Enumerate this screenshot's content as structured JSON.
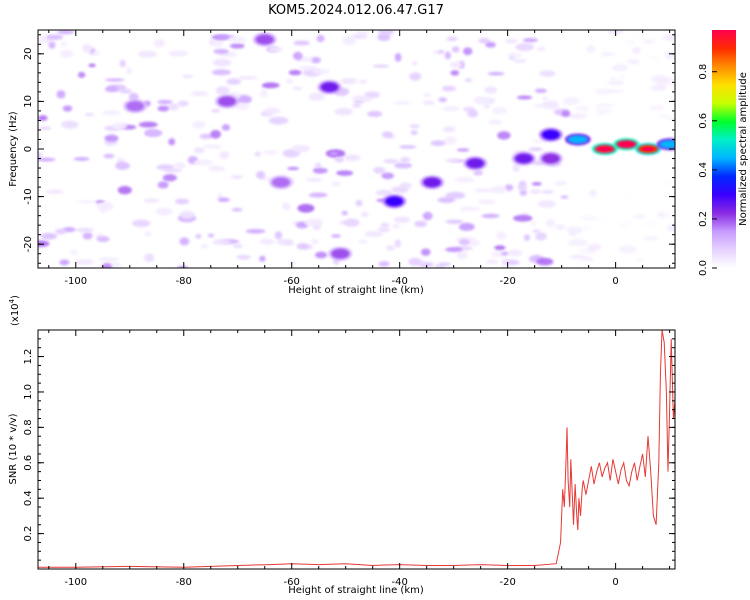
{
  "title": "KOM5.2024.012.06.47.G17",
  "colorbar": {
    "label": "Normalized spectral amplitude",
    "ticks": [
      "0.0",
      "0.2",
      "0.4",
      "0.6",
      "0.8"
    ],
    "tick_values": [
      0.0,
      0.2,
      0.4,
      0.6,
      0.8
    ],
    "range": [
      0,
      0.97
    ],
    "stops": [
      "#ffffff",
      "#e6d2ff",
      "#c79bff",
      "#8a2be2",
      "#3a00ff",
      "#0028ff",
      "#00b4ff",
      "#00f0c8",
      "#00ff2a",
      "#c8ff00",
      "#ffe000",
      "#ff8c00",
      "#ff2a00",
      "#ff0050"
    ]
  },
  "chart_data": [
    {
      "type": "heatmap",
      "xlabel": "Height of straight line (km)",
      "ylabel": "Frequency (Hz)",
      "xlim": [
        -107,
        11
      ],
      "ylim": [
        -25,
        25
      ],
      "xticks": [
        -100,
        -80,
        -60,
        -40,
        -20,
        0
      ],
      "yticks": [
        -20,
        -10,
        0,
        10,
        20
      ],
      "grid": false,
      "features": [
        {
          "x": -65,
          "y": 23,
          "value": 0.2
        },
        {
          "x": -72,
          "y": 10,
          "value": 0.2
        },
        {
          "x": -53,
          "y": 13,
          "value": 0.25
        },
        {
          "x": -51,
          "y": -22,
          "value": 0.2
        },
        {
          "x": -62,
          "y": -7,
          "value": 0.18
        },
        {
          "x": -89,
          "y": 9,
          "value": 0.18
        },
        {
          "x": -41,
          "y": -11,
          "value": 0.3
        },
        {
          "x": -34,
          "y": -7,
          "value": 0.25
        },
        {
          "x": -26,
          "y": -3,
          "value": 0.25
        },
        {
          "x": -17,
          "y": -2,
          "value": 0.25
        },
        {
          "x": -12,
          "y": -2,
          "value": 0.22
        },
        {
          "x": -12,
          "y": 3,
          "value": 0.3
        },
        {
          "x": -7,
          "y": 2,
          "value": 0.45
        },
        {
          "x": -2,
          "y": 0,
          "value": 0.95
        },
        {
          "x": 2,
          "y": 1,
          "value": 0.97
        },
        {
          "x": 6,
          "y": 0,
          "value": 0.9
        },
        {
          "x": 10,
          "y": 1,
          "value": 0.45
        }
      ]
    },
    {
      "type": "line",
      "xlabel": "Height of straight line (km)",
      "ylabel": "SNR (10 * v/v)",
      "y_multiplier": "(x10",
      "y_multiplier_exp": "4",
      "y_multiplier_close": ")",
      "xlim": [
        -107,
        11
      ],
      "ylim": [
        0,
        1.35
      ],
      "xticks": [
        -100,
        -80,
        -60,
        -40,
        -20,
        0
      ],
      "yticks": [
        0.2,
        0.4,
        0.6,
        0.8,
        1.0,
        1.2
      ],
      "ytick_labels": [
        "0.2",
        "0.4",
        "0.6",
        "0.8",
        "1.0",
        "1.2"
      ],
      "color": "#e53935",
      "series": [
        {
          "x": [
            -107,
            -100,
            -90,
            -80,
            -70,
            -64,
            -60,
            -55,
            -50,
            -45,
            -40,
            -35,
            -30,
            -25,
            -20,
            -15,
            -11,
            -10.2,
            -9.8,
            -9.5,
            -9.2,
            -9.0,
            -8.8,
            -8.5,
            -8.3,
            -8.0,
            -7.8,
            -7.5,
            -7.2,
            -7.0,
            -6.8,
            -6.5,
            -6.2,
            -6.0,
            -5.5,
            -5.0,
            -4.5,
            -4.0,
            -3.5,
            -3.0,
            -2.5,
            -2.0,
            -1.5,
            -1.0,
            -0.5,
            0.0,
            0.5,
            1.0,
            1.5,
            2.0,
            2.5,
            3.0,
            3.5,
            4.0,
            4.5,
            5.0,
            5.5,
            6.0,
            6.5,
            7.0,
            7.5,
            8.0,
            8.3,
            8.6,
            9.0,
            9.4,
            9.7,
            10.0,
            10.3,
            10.7,
            11.0
          ],
          "values": [
            0.01,
            0.01,
            0.015,
            0.01,
            0.02,
            0.025,
            0.03,
            0.025,
            0.03,
            0.02,
            0.025,
            0.02,
            0.02,
            0.025,
            0.02,
            0.02,
            0.03,
            0.15,
            0.45,
            0.35,
            0.6,
            0.8,
            0.5,
            0.35,
            0.62,
            0.4,
            0.25,
            0.48,
            0.3,
            0.22,
            0.4,
            0.3,
            0.45,
            0.5,
            0.42,
            0.5,
            0.58,
            0.48,
            0.55,
            0.6,
            0.52,
            0.57,
            0.6,
            0.5,
            0.62,
            0.55,
            0.48,
            0.56,
            0.6,
            0.5,
            0.47,
            0.55,
            0.6,
            0.5,
            0.58,
            0.65,
            0.52,
            0.75,
            0.55,
            0.3,
            0.25,
            0.6,
            1.1,
            1.35,
            1.28,
            1.0,
            0.55,
            0.9,
            1.3,
            0.85,
            0.95
          ]
        }
      ]
    }
  ]
}
